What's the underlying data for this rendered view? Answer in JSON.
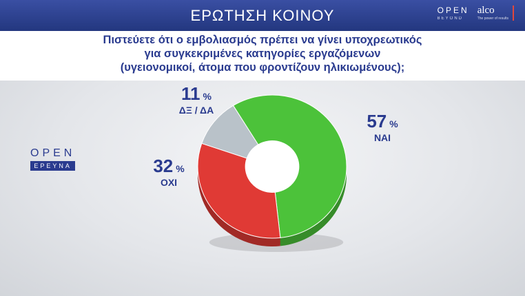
{
  "header": {
    "title": "ΕΡΩΤΗΣΗ ΚΟΙΝΟΥ"
  },
  "brands": {
    "open": "OPEN",
    "open_sub": "BEYOND",
    "alco": "alco",
    "alco_sub": "The power of results"
  },
  "question": [
    "Πιστεύετε ότι ο εμβολιασμός πρέπει να γίνει υποχρεωτικός",
    "για συγκεκριμένες κατηγορίες εργαζόμενων",
    "(υγειονομικοί, άτομα που φροντίζουν ηλικιωμένους);"
  ],
  "logo": {
    "open": "OPEN",
    "erevna": "ΕΡΕΥΝΑ"
  },
  "colors": {
    "nai": "#4cc23a",
    "oxi": "#e03a35",
    "dk": "#b9c2c9",
    "text": "#2a3b8f"
  },
  "chart_data": {
    "type": "pie",
    "categories": [
      "ΝΑΙ",
      "ΟΧΙ",
      "ΔΞ / ΔΑ"
    ],
    "values": [
      57,
      32,
      11
    ],
    "unit": "%"
  }
}
